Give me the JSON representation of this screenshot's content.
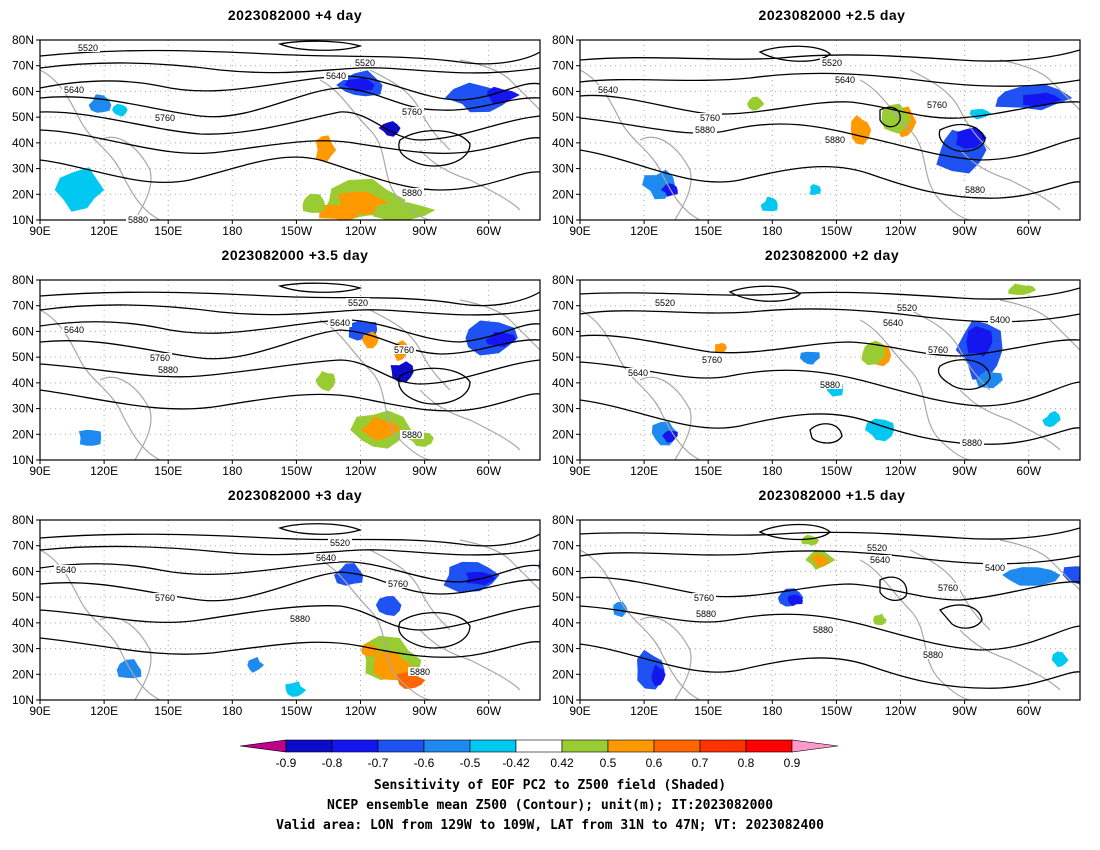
{
  "panels": [
    {
      "title": "2023082000  +4 day",
      "labels": [
        [
          "5520",
          88,
          10
        ],
        [
          "5520",
          365,
          25
        ],
        [
          "5640",
          74,
          52
        ],
        [
          "5640",
          336,
          38
        ],
        [
          "5760",
          165,
          80
        ],
        [
          "5760",
          412,
          74
        ],
        [
          "5880",
          412,
          155
        ],
        [
          "5880",
          138,
          182
        ]
      ]
    },
    {
      "title": "2023082000  +2.5 day",
      "labels": [
        [
          "5520",
          832,
          25
        ],
        [
          "5640",
          608,
          52
        ],
        [
          "5640",
          845,
          42
        ],
        [
          "5760",
          710,
          80
        ],
        [
          "5880",
          705,
          92
        ],
        [
          "5760",
          937,
          67
        ],
        [
          "5880",
          835,
          102
        ],
        [
          "5880",
          975,
          152
        ]
      ]
    },
    {
      "title": "2023082000  +3.5 day",
      "labels": [
        [
          "5520",
          358,
          25
        ],
        [
          "5640",
          74,
          52
        ],
        [
          "5640",
          340,
          45
        ],
        [
          "5760",
          160,
          80
        ],
        [
          "5880",
          168,
          92
        ],
        [
          "5760",
          404,
          72
        ],
        [
          "5880",
          412,
          157
        ]
      ]
    },
    {
      "title": "2023082000  +2 day",
      "labels": [
        [
          "5520",
          665,
          25
        ],
        [
          "5520",
          907,
          30
        ],
        [
          "5640",
          893,
          45
        ],
        [
          "5400",
          1000,
          42
        ],
        [
          "5640",
          638,
          95
        ],
        [
          "5760",
          712,
          82
        ],
        [
          "5760",
          938,
          72
        ],
        [
          "5880",
          830,
          107
        ],
        [
          "5880",
          972,
          165
        ]
      ]
    },
    {
      "title": "2023082000  +3 day",
      "labels": [
        [
          "5520",
          340,
          25
        ],
        [
          "5640",
          326,
          40
        ],
        [
          "5640",
          66,
          52
        ],
        [
          "5760",
          165,
          80
        ],
        [
          "5760",
          398,
          66
        ],
        [
          "5880",
          300,
          101
        ],
        [
          "5880",
          420,
          154
        ]
      ]
    },
    {
      "title": "2023082000  +1.5 day",
      "labels": [
        [
          "5520",
          877,
          30
        ],
        [
          "5640",
          880,
          42
        ],
        [
          "5400",
          995,
          50
        ],
        [
          "5760",
          948,
          70
        ],
        [
          "5760",
          704,
          80
        ],
        [
          "5880",
          706,
          96
        ],
        [
          "5880",
          823,
          112
        ],
        [
          "5880",
          933,
          137
        ]
      ]
    }
  ],
  "axes": {
    "lat_labels": [
      "80N",
      "70N",
      "60N",
      "50N",
      "40N",
      "30N",
      "20N",
      "10N"
    ],
    "lon_labels": [
      "90E",
      "120E",
      "150E",
      "180",
      "150W",
      "120W",
      "90W",
      "60W"
    ]
  },
  "colorbar": {
    "ticks": [
      "-0.9",
      "-0.8",
      "-0.7",
      "-0.6",
      "-0.5",
      "-0.42",
      "0.42",
      "0.5",
      "0.6",
      "0.7",
      "0.8",
      "0.9"
    ],
    "colors": [
      "#c0008a",
      "#0b0bc8",
      "#1515f0",
      "#1f52f2",
      "#1e8af0",
      "#00c8f0",
      "#ffffff",
      "#99cc33",
      "#ff9900",
      "#ff6600",
      "#ff3300",
      "#ff0000",
      "#ff99cc"
    ]
  },
  "footer": {
    "line1": "Sensitivity of EOF PC2 to Z500 field (Shaded)",
    "line2": "NCEP ensemble mean Z500 (Contour); unit(m); IT:2023082000",
    "line3": "Valid area: LON from 129W to 109W, LAT from 31N to 47N; VT: 2023082400"
  }
}
